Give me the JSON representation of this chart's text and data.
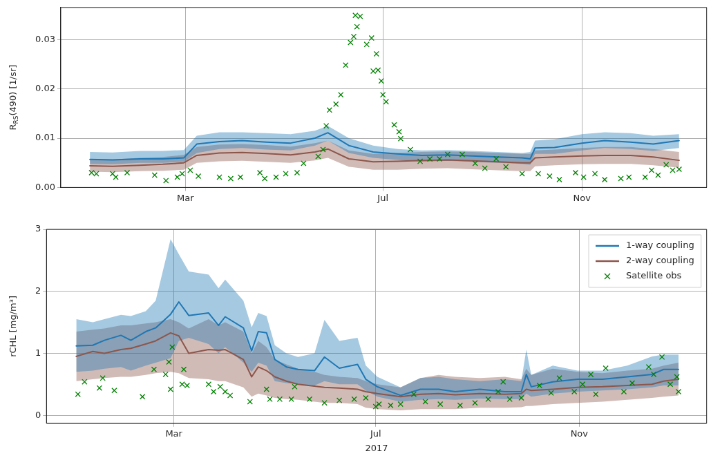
{
  "chart_data": [
    {
      "type": "line",
      "ylabel": "R$_{RS}$(490) [1/sr]",
      "xlim": [
        "2016-12-14",
        "2018-01-17"
      ],
      "xticks": [
        {
          "value": "2017-03-01",
          "label": "Mar"
        },
        {
          "value": "2017-07-01",
          "label": "Jul"
        },
        {
          "value": "2017-11-01",
          "label": "Nov"
        }
      ],
      "ylim": [
        0,
        0.0365
      ],
      "yticks": [
        {
          "value": 0,
          "label": "0.00"
        },
        {
          "value": 0.01,
          "label": "0.01"
        },
        {
          "value": 0.02,
          "label": "0.02"
        },
        {
          "value": 0.03,
          "label": "0.03"
        }
      ],
      "grid": true,
      "x": [
        "2017-01-01",
        "2017-01-15",
        "2017-02-01",
        "2017-02-15",
        "2017-02-28",
        "2017-03-08",
        "2017-03-22",
        "2017-04-05",
        "2017-04-20",
        "2017-05-05",
        "2017-05-20",
        "2017-05-28",
        "2017-06-10",
        "2017-06-25",
        "2017-07-10",
        "2017-07-25",
        "2017-08-10",
        "2017-08-25",
        "2017-09-10",
        "2017-09-25",
        "2017-09-30",
        "2017-10-03",
        "2017-10-15",
        "2017-11-01",
        "2017-11-15",
        "2017-12-01",
        "2017-12-15",
        "2017-12-31"
      ],
      "series": [
        {
          "color": "#1f77b4",
          "marker": "none",
          "values": [
            0.0057,
            0.0056,
            0.0058,
            0.0058,
            0.006,
            0.0088,
            0.0093,
            0.0095,
            0.0092,
            0.009,
            0.01,
            0.0111,
            0.0085,
            0.0072,
            0.0068,
            0.0065,
            0.0066,
            0.0064,
            0.0062,
            0.006,
            0.0058,
            0.008,
            0.0081,
            0.009,
            0.0095,
            0.0092,
            0.0088,
            0.0095
          ],
          "upper": [
            0.0072,
            0.0071,
            0.0074,
            0.0074,
            0.0076,
            0.0105,
            0.0112,
            0.0112,
            0.011,
            0.0108,
            0.0115,
            0.0125,
            0.01,
            0.0085,
            0.0078,
            0.0075,
            0.0076,
            0.0074,
            0.0072,
            0.007,
            0.0072,
            0.0095,
            0.0098,
            0.0108,
            0.0112,
            0.011,
            0.0105,
            0.0108
          ],
          "lower": [
            0.0048,
            0.0047,
            0.005,
            0.005,
            0.0052,
            0.007,
            0.0078,
            0.008,
            0.0077,
            0.0075,
            0.0085,
            0.0095,
            0.007,
            0.006,
            0.0056,
            0.0052,
            0.0054,
            0.0052,
            0.005,
            0.0048,
            0.0046,
            0.0068,
            0.0068,
            0.0075,
            0.008,
            0.0078,
            0.0074,
            0.008
          ]
        },
        {
          "color": "#8c564b",
          "marker": "none",
          "values": [
            0.0044,
            0.0043,
            0.0045,
            0.0047,
            0.005,
            0.0065,
            0.007,
            0.0071,
            0.0069,
            0.0066,
            0.0072,
            0.0078,
            0.0058,
            0.0052,
            0.0053,
            0.0055,
            0.0056,
            0.0054,
            0.0052,
            0.005,
            0.005,
            0.006,
            0.0062,
            0.0064,
            0.0065,
            0.0065,
            0.0062,
            0.0055
          ],
          "upper": [
            0.0058,
            0.0057,
            0.006,
            0.0062,
            0.0066,
            0.0082,
            0.0087,
            0.0088,
            0.0086,
            0.0083,
            0.009,
            0.0095,
            0.0075,
            0.0068,
            0.007,
            0.0072,
            0.0073,
            0.0072,
            0.007,
            0.0068,
            0.0068,
            0.0075,
            0.0077,
            0.008,
            0.0082,
            0.0082,
            0.0078,
            0.0072
          ],
          "lower": [
            0.0032,
            0.0031,
            0.0033,
            0.0034,
            0.0036,
            0.005,
            0.0053,
            0.0054,
            0.0052,
            0.005,
            0.0055,
            0.006,
            0.0042,
            0.0036,
            0.0036,
            0.0038,
            0.0039,
            0.0037,
            0.0035,
            0.0033,
            0.0033,
            0.0043,
            0.0045,
            0.0047,
            0.0048,
            0.0048,
            0.0045,
            0.004
          ]
        },
        {
          "type": "scatter",
          "color": "#008000",
          "marker": "cross",
          "x": [
            "2017-01-02",
            "2017-01-05",
            "2017-01-15",
            "2017-01-17",
            "2017-01-24",
            "2017-02-10",
            "2017-02-17",
            "2017-02-24",
            "2017-02-27",
            "2017-03-04",
            "2017-03-09",
            "2017-03-22",
            "2017-03-29",
            "2017-04-04",
            "2017-04-16",
            "2017-04-19",
            "2017-04-26",
            "2017-05-02",
            "2017-05-09",
            "2017-05-13",
            "2017-05-22",
            "2017-05-25",
            "2017-05-27",
            "2017-05-29",
            "2017-06-02",
            "2017-06-05",
            "2017-06-08",
            "2017-06-11",
            "2017-06-13",
            "2017-06-15",
            "2017-06-14",
            "2017-06-17",
            "2017-06-21",
            "2017-06-24",
            "2017-06-25",
            "2017-06-27",
            "2017-06-28",
            "2017-06-30",
            "2017-07-01",
            "2017-07-03",
            "2017-07-08",
            "2017-07-11",
            "2017-07-12",
            "2017-07-18",
            "2017-07-24",
            "2017-07-30",
            "2017-08-05",
            "2017-08-10",
            "2017-08-19",
            "2017-08-27",
            "2017-09-02",
            "2017-09-09",
            "2017-09-15",
            "2017-09-25",
            "2017-10-05",
            "2017-10-12",
            "2017-10-18",
            "2017-10-28",
            "2017-11-02",
            "2017-11-09",
            "2017-11-15",
            "2017-11-25",
            "2017-11-30",
            "2017-12-10",
            "2017-12-14",
            "2017-12-18",
            "2017-12-23",
            "2017-12-27",
            "2017-12-31"
          ],
          "values": [
            0.003,
            0.0028,
            0.0028,
            0.0021,
            0.003,
            0.0025,
            0.0014,
            0.0021,
            0.0028,
            0.0035,
            0.0023,
            0.0021,
            0.0018,
            0.0021,
            0.003,
            0.0018,
            0.0021,
            0.0028,
            0.003,
            0.0049,
            0.0063,
            0.0077,
            0.0125,
            0.0157,
            0.0169,
            0.0188,
            0.0248,
            0.0294,
            0.0306,
            0.0326,
            0.0349,
            0.0347,
            0.029,
            0.0303,
            0.0236,
            0.0271,
            0.0238,
            0.0216,
            0.0188,
            0.0174,
            0.0127,
            0.0113,
            0.0099,
            0.0077,
            0.0053,
            0.0058,
            0.0058,
            0.0067,
            0.0067,
            0.0049,
            0.0039,
            0.0058,
            0.0042,
            0.0028,
            0.0028,
            0.0023,
            0.0016,
            0.003,
            0.0021,
            0.0028,
            0.0016,
            0.0018,
            0.0021,
            0.0021,
            0.0035,
            0.0025,
            0.0046,
            0.0035,
            0.0037
          ]
        }
      ]
    },
    {
      "type": "line",
      "ylabel": "rCHL [mg/m³]",
      "xlabel": "2017",
      "xlim": [
        "2016-12-14",
        "2018-01-17"
      ],
      "xticks": [
        {
          "value": "2017-03-01",
          "label": "Mar"
        },
        {
          "value": "2017-07-01",
          "label": "Jul"
        },
        {
          "value": "2017-11-01",
          "label": "Nov"
        }
      ],
      "ylim": [
        -0.13,
        3
      ],
      "yticks": [
        0,
        1,
        2,
        3
      ],
      "grid": true,
      "legend": "top right",
      "x": [
        "2017-01-01",
        "2017-01-11",
        "2017-01-18",
        "2017-01-28",
        "2017-02-03",
        "2017-02-12",
        "2017-02-18",
        "2017-02-27",
        "2017-03-04",
        "2017-03-10",
        "2017-03-22",
        "2017-03-28",
        "2017-04-01",
        "2017-04-12",
        "2017-04-17",
        "2017-04-21",
        "2017-04-26",
        "2017-05-01",
        "2017-05-08",
        "2017-05-15",
        "2017-05-25",
        "2017-05-31",
        "2017-06-09",
        "2017-06-20",
        "2017-06-25",
        "2017-07-02",
        "2017-07-16",
        "2017-07-28",
        "2017-08-08",
        "2017-08-18",
        "2017-09-02",
        "2017-09-17",
        "2017-09-27",
        "2017-09-30",
        "2017-10-03",
        "2017-10-16",
        "2017-10-31",
        "2017-11-15",
        "2017-11-30",
        "2017-12-15",
        "2017-12-22",
        "2017-12-31"
      ],
      "series": [
        {
          "name": "1-way coupling",
          "color": "#1f77b4",
          "marker": "none",
          "values": [
            1.12,
            1.13,
            1.21,
            1.29,
            1.21,
            1.35,
            1.41,
            1.63,
            1.83,
            1.61,
            1.65,
            1.45,
            1.59,
            1.41,
            1.04,
            1.35,
            1.33,
            0.9,
            0.78,
            0.74,
            0.72,
            0.94,
            0.76,
            0.82,
            0.58,
            0.46,
            0.32,
            0.42,
            0.42,
            0.38,
            0.42,
            0.38,
            0.38,
            0.66,
            0.46,
            0.54,
            0.58,
            0.58,
            0.62,
            0.66,
            0.74,
            0.74
          ],
          "upper": [
            1.55,
            1.5,
            1.55,
            1.62,
            1.6,
            1.68,
            1.85,
            2.84,
            2.6,
            2.32,
            2.27,
            2.05,
            2.19,
            1.85,
            1.42,
            1.65,
            1.6,
            1.13,
            1.0,
            0.94,
            1.0,
            1.54,
            1.2,
            1.25,
            0.8,
            0.62,
            0.45,
            0.6,
            0.62,
            0.58,
            0.55,
            0.58,
            0.55,
            1.06,
            0.65,
            0.8,
            0.72,
            0.72,
            0.8,
            0.95,
            0.98,
            0.98
          ],
          "lower": [
            0.7,
            0.72,
            0.75,
            0.78,
            0.72,
            0.8,
            0.85,
            0.92,
            1.2,
            1.25,
            1.15,
            1.0,
            1.1,
            0.85,
            0.7,
            0.85,
            0.8,
            0.55,
            0.52,
            0.5,
            0.48,
            0.55,
            0.5,
            0.5,
            0.4,
            0.3,
            0.22,
            0.25,
            0.26,
            0.25,
            0.27,
            0.26,
            0.26,
            0.35,
            0.3,
            0.35,
            0.38,
            0.4,
            0.42,
            0.45,
            0.48,
            0.48
          ]
        },
        {
          "name": "2-way coupling",
          "color": "#8c564b",
          "marker": "none",
          "values": [
            0.95,
            1.03,
            1.0,
            1.06,
            1.08,
            1.15,
            1.2,
            1.33,
            1.28,
            1.0,
            1.06,
            1.05,
            1.06,
            0.9,
            0.62,
            0.78,
            0.72,
            0.62,
            0.55,
            0.5,
            0.47,
            0.45,
            0.44,
            0.42,
            0.38,
            0.35,
            0.3,
            0.34,
            0.35,
            0.33,
            0.35,
            0.34,
            0.35,
            0.42,
            0.4,
            0.42,
            0.45,
            0.46,
            0.48,
            0.5,
            0.55,
            0.58
          ],
          "upper": [
            1.35,
            1.38,
            1.4,
            1.45,
            1.45,
            1.48,
            1.5,
            1.55,
            1.5,
            1.4,
            1.55,
            1.45,
            1.5,
            1.35,
            1.0,
            1.2,
            1.1,
            0.9,
            0.82,
            0.75,
            0.7,
            0.65,
            0.62,
            0.6,
            0.55,
            0.5,
            0.45,
            0.6,
            0.65,
            0.62,
            0.6,
            0.62,
            0.58,
            0.75,
            0.65,
            0.75,
            0.7,
            0.68,
            0.72,
            0.75,
            0.8,
            0.85
          ],
          "lower": [
            0.55,
            0.58,
            0.6,
            0.62,
            0.62,
            0.65,
            0.68,
            0.7,
            0.68,
            0.6,
            0.58,
            0.55,
            0.55,
            0.45,
            0.3,
            0.35,
            0.32,
            0.28,
            0.26,
            0.25,
            0.22,
            0.2,
            0.2,
            0.18,
            0.12,
            0.1,
            0.08,
            0.1,
            0.1,
            0.1,
            0.12,
            0.12,
            0.13,
            0.15,
            0.15,
            0.18,
            0.2,
            0.22,
            0.25,
            0.28,
            0.3,
            0.32
          ]
        },
        {
          "type": "scatter",
          "name": "Satellite obs",
          "color": "#008000",
          "marker": "cross",
          "x": [
            "2017-01-02",
            "2017-01-06",
            "2017-01-15",
            "2017-01-17",
            "2017-01-24",
            "2017-02-10",
            "2017-02-17",
            "2017-02-24",
            "2017-02-26",
            "2017-02-28",
            "2017-02-27",
            "2017-03-07",
            "2017-03-06",
            "2017-03-09",
            "2017-03-22",
            "2017-03-25",
            "2017-03-29",
            "2017-04-01",
            "2017-04-04",
            "2017-04-16",
            "2017-04-26",
            "2017-04-28",
            "2017-05-04",
            "2017-05-11",
            "2017-05-13",
            "2017-05-22",
            "2017-05-31",
            "2017-06-09",
            "2017-06-18",
            "2017-06-25",
            "2017-07-01",
            "2017-07-03",
            "2017-07-10",
            "2017-07-16",
            "2017-07-24",
            "2017-07-31",
            "2017-08-09",
            "2017-08-21",
            "2017-08-30",
            "2017-09-07",
            "2017-09-13",
            "2017-09-16",
            "2017-09-20",
            "2017-09-27",
            "2017-10-08",
            "2017-10-15",
            "2017-10-20",
            "2017-10-29",
            "2017-11-03",
            "2017-11-08",
            "2017-11-11",
            "2017-11-17",
            "2017-11-28",
            "2017-12-03",
            "2017-12-13",
            "2017-12-16",
            "2017-12-21",
            "2017-12-26",
            "2017-12-30",
            "2017-12-31"
          ],
          "values": [
            0.34,
            0.54,
            0.44,
            0.6,
            0.4,
            0.3,
            0.74,
            0.66,
            0.86,
            1.1,
            0.42,
            0.74,
            0.5,
            0.48,
            0.5,
            0.38,
            0.46,
            0.38,
            0.32,
            0.22,
            0.42,
            0.26,
            0.26,
            0.26,
            0.46,
            0.26,
            0.2,
            0.24,
            0.26,
            0.28,
            0.14,
            0.18,
            0.16,
            0.18,
            0.34,
            0.22,
            0.18,
            0.16,
            0.2,
            0.26,
            0.38,
            0.54,
            0.26,
            0.28,
            0.48,
            0.36,
            0.6,
            0.38,
            0.5,
            0.66,
            0.34,
            0.76,
            0.38,
            0.52,
            0.78,
            0.66,
            0.94,
            0.5,
            0.62,
            0.38
          ]
        }
      ]
    }
  ]
}
